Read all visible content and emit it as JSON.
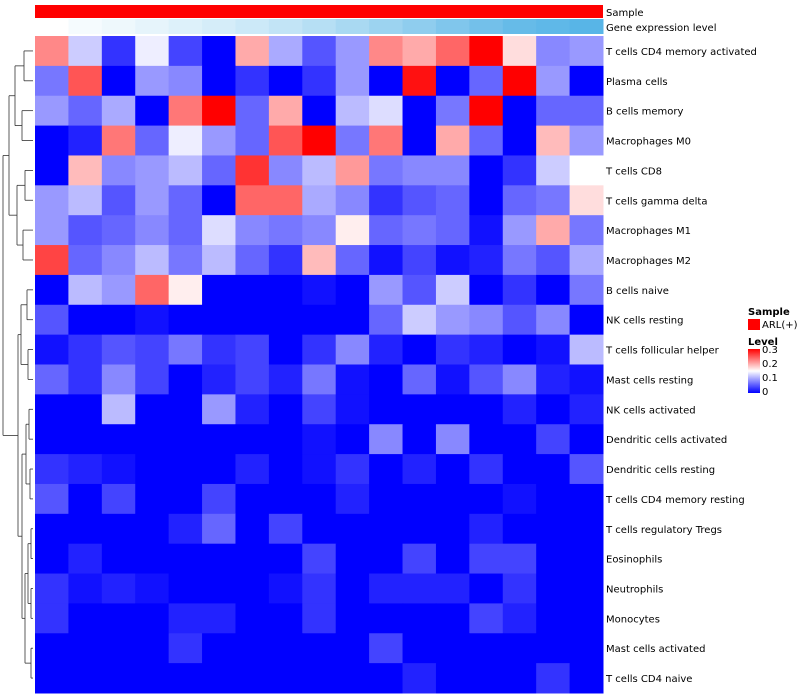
{
  "chart_data": {
    "type": "heatmap",
    "title": "",
    "annotation_rows": [
      "Sample",
      "Gene expression level"
    ],
    "annotation_sample_color": "#ff0000",
    "annotation_gene_colors": [
      "#ffffff",
      "#f5fbfe",
      "#eef8fc",
      "#e6f4fb",
      "#ddf1fa",
      "#d5edf9",
      "#cce9f8",
      "#c2e4f6",
      "#b6dff4",
      "#a9d9f2",
      "#9cd3f0",
      "#8fcdee",
      "#80c6ec",
      "#73c0ea",
      "#66bbe8",
      "#5fb8e8",
      "#58b5e7"
    ],
    "rows": [
      "T cells CD4 memory activated",
      "Plasma cells",
      "B cells memory",
      "Macrophages M0",
      "T cells CD8",
      "T cells gamma delta",
      "Macrophages M1",
      "Macrophages M2",
      "B cells naive",
      "NK cells resting",
      "T cells follicular helper",
      "Mast cells resting",
      "NK cells activated",
      "Dendritic cells activated",
      "Dendritic cells resting",
      "T cells CD4 memory resting",
      "T cells regulatory  Tregs",
      "Eosinophils",
      "Neutrophils",
      "Monocytes",
      "Mast cells activated",
      "T cells CD4 naive"
    ],
    "n_columns": 17,
    "values": [
      [
        0.22,
        0.12,
        0.03,
        0.14,
        0.04,
        0.0,
        0.2,
        0.1,
        0.05,
        0.09,
        0.22,
        0.2,
        0.24,
        0.3,
        0.17,
        0.08,
        0.09
      ],
      [
        0.07,
        0.25,
        0.0,
        0.09,
        0.08,
        0.0,
        0.03,
        0.0,
        0.03,
        0.09,
        0.0,
        0.29,
        0.0,
        0.06,
        0.3,
        0.09,
        0.0
      ],
      [
        0.09,
        0.06,
        0.1,
        0.0,
        0.23,
        0.3,
        0.06,
        0.2,
        0.0,
        0.11,
        0.13,
        0.0,
        0.07,
        0.3,
        0.0,
        0.06,
        0.06
      ],
      [
        0.0,
        0.02,
        0.23,
        0.06,
        0.14,
        0.09,
        0.06,
        0.25,
        0.3,
        0.07,
        0.23,
        0.0,
        0.2,
        0.06,
        0.0,
        0.19,
        0.09
      ],
      [
        0.0,
        0.19,
        0.08,
        0.09,
        0.11,
        0.06,
        0.27,
        0.08,
        0.11,
        0.21,
        0.07,
        0.08,
        0.08,
        0.0,
        0.03,
        0.12,
        0.15
      ],
      [
        0.09,
        0.11,
        0.05,
        0.09,
        0.06,
        0.0,
        0.24,
        0.24,
        0.1,
        0.08,
        0.03,
        0.05,
        0.06,
        0.0,
        0.06,
        0.07,
        0.17
      ],
      [
        0.09,
        0.05,
        0.06,
        0.08,
        0.06,
        0.13,
        0.08,
        0.07,
        0.08,
        0.16,
        0.06,
        0.07,
        0.06,
        0.01,
        0.09,
        0.2,
        0.07
      ],
      [
        0.26,
        0.06,
        0.08,
        0.11,
        0.07,
        0.11,
        0.06,
        0.03,
        0.19,
        0.06,
        0.01,
        0.04,
        0.01,
        0.02,
        0.07,
        0.05,
        0.1
      ],
      [
        0.0,
        0.11,
        0.09,
        0.24,
        0.16,
        0.0,
        0.0,
        0.0,
        0.01,
        0.0,
        0.09,
        0.05,
        0.12,
        0.0,
        0.03,
        0.0,
        0.07
      ],
      [
        0.05,
        0.0,
        0.0,
        0.01,
        0.0,
        0.0,
        0.0,
        0.0,
        0.0,
        0.0,
        0.06,
        0.12,
        0.09,
        0.08,
        0.05,
        0.08,
        0.0
      ],
      [
        0.01,
        0.03,
        0.05,
        0.04,
        0.07,
        0.03,
        0.04,
        0.0,
        0.03,
        0.08,
        0.02,
        0.0,
        0.03,
        0.02,
        0.0,
        0.01,
        0.11
      ],
      [
        0.06,
        0.03,
        0.08,
        0.04,
        0.0,
        0.02,
        0.04,
        0.02,
        0.07,
        0.01,
        0.0,
        0.06,
        0.01,
        0.05,
        0.08,
        0.02,
        0.01
      ],
      [
        0.0,
        0.0,
        0.11,
        0.0,
        0.0,
        0.09,
        0.02,
        0.0,
        0.04,
        0.01,
        0.0,
        0.0,
        0.0,
        0.0,
        0.02,
        0.0,
        0.02
      ],
      [
        0.0,
        0.0,
        0.0,
        0.0,
        0.0,
        0.0,
        0.0,
        0.0,
        0.01,
        0.0,
        0.08,
        0.0,
        0.08,
        0.0,
        0.0,
        0.04,
        0.0
      ],
      [
        0.03,
        0.02,
        0.01,
        0.0,
        0.0,
        0.0,
        0.02,
        0.0,
        0.01,
        0.03,
        0.0,
        0.02,
        0.0,
        0.03,
        0.0,
        0.0,
        0.05
      ],
      [
        0.05,
        0.0,
        0.04,
        0.0,
        0.0,
        0.04,
        0.0,
        0.0,
        0.0,
        0.02,
        0.0,
        0.0,
        0.0,
        0.0,
        0.01,
        0.0,
        0.0
      ],
      [
        0.0,
        0.0,
        0.0,
        0.0,
        0.02,
        0.06,
        0.0,
        0.04,
        0.0,
        0.0,
        0.0,
        0.0,
        0.0,
        0.02,
        0.0,
        0.0,
        0.0
      ],
      [
        0.0,
        0.02,
        0.0,
        0.0,
        0.0,
        0.0,
        0.0,
        0.0,
        0.04,
        0.0,
        0.0,
        0.04,
        0.0,
        0.04,
        0.04,
        0.0,
        0.0
      ],
      [
        0.03,
        0.01,
        0.02,
        0.01,
        0.0,
        0.0,
        0.0,
        0.01,
        0.03,
        0.0,
        0.02,
        0.02,
        0.02,
        0.0,
        0.03,
        0.0,
        0.0
      ],
      [
        0.03,
        0.0,
        0.0,
        0.0,
        0.02,
        0.02,
        0.0,
        0.0,
        0.03,
        0.0,
        0.0,
        0.0,
        0.0,
        0.04,
        0.02,
        0.0,
        0.0
      ],
      [
        0.0,
        0.0,
        0.0,
        0.0,
        0.03,
        0.0,
        0.0,
        0.0,
        0.0,
        0.0,
        0.04,
        0.0,
        0.0,
        0.0,
        0.0,
        0.0,
        0.0
      ],
      [
        0.0,
        0.0,
        0.0,
        0.0,
        0.0,
        0.0,
        0.0,
        0.0,
        0.0,
        0.0,
        0.0,
        0.02,
        0.0,
        0.0,
        0.0,
        0.03,
        0.0
      ]
    ],
    "color_scale": {
      "min": 0,
      "mid": 0.15,
      "max": 0.3,
      "low": "#0000ff",
      "midColor": "#ffffff",
      "high": "#ff0000"
    },
    "legend": {
      "sample_title": "Sample",
      "sample_entry": "ARL(+)",
      "level_title": "Level",
      "ticks": [
        "0.3",
        "0.2",
        "0.1",
        "0"
      ],
      "placement": "right"
    },
    "row_dendrogram": true
  }
}
